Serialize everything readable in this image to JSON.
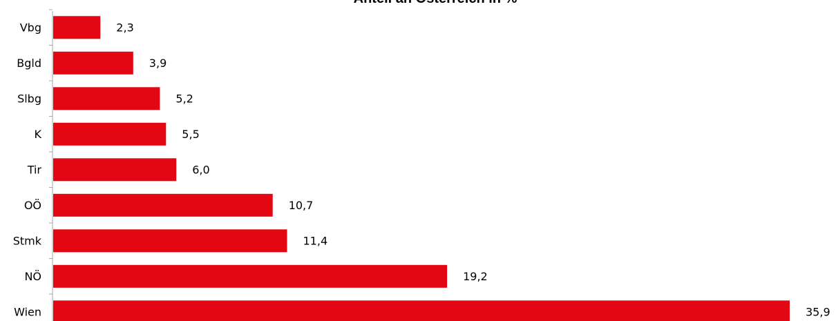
{
  "chart_data": {
    "type": "bar",
    "orientation": "horizontal",
    "title": "Anteil an Österreich in %",
    "categories": [
      "Vbg",
      "Bgld",
      "Slbg",
      "K",
      "Tir",
      "OÖ",
      "Stmk",
      "NÖ",
      "Wien"
    ],
    "values": [
      2.3,
      3.9,
      5.2,
      5.5,
      6.0,
      10.7,
      11.4,
      19.2,
      35.9
    ],
    "value_labels": [
      "2,3",
      "3,9",
      "5,2",
      "5,5",
      "6,0",
      "10,7",
      "11,4",
      "19,2",
      "35,9"
    ],
    "xlim": [
      0,
      36
    ],
    "grid": false,
    "legend": "none",
    "bar_color": "#e30613"
  }
}
